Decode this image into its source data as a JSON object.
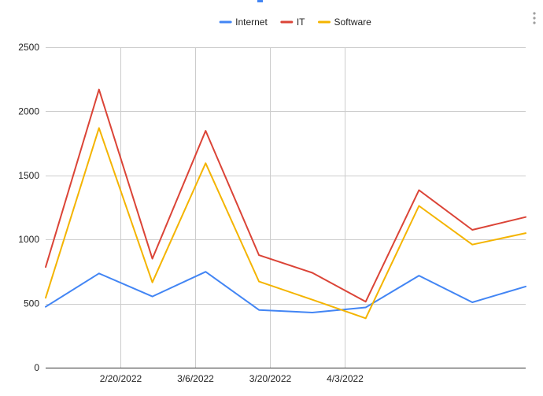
{
  "chart_data": {
    "type": "line",
    "title": "",
    "xlabel": "",
    "ylabel": "",
    "ylim": [
      0,
      2500
    ],
    "yticks": [
      0,
      500,
      1000,
      1500,
      2000,
      2500
    ],
    "xtick_labels": [
      "2/20/2022",
      "3/6/2022",
      "3/20/2022",
      "4/3/2022"
    ],
    "x": [
      "2/6/2022",
      "2/16/2022",
      "2/26/2022",
      "3/8/2022",
      "3/18/2022",
      "3/28/2022",
      "4/7/2022",
      "4/17/2022",
      "4/27/2022",
      "5/7/2022"
    ],
    "grid": true,
    "legend_position": "top",
    "series": [
      {
        "name": "Internet",
        "color": "#4285f4",
        "values": [
          475,
          735,
          555,
          748,
          450,
          430,
          470,
          718,
          510,
          633
        ]
      },
      {
        "name": "IT",
        "color": "#db4437",
        "values": [
          785,
          2170,
          850,
          1848,
          878,
          740,
          515,
          1385,
          1075,
          1175
        ]
      },
      {
        "name": "Software",
        "color": "#f4b400",
        "values": [
          545,
          1870,
          665,
          1595,
          672,
          530,
          385,
          1262,
          960,
          1050
        ]
      }
    ]
  }
}
